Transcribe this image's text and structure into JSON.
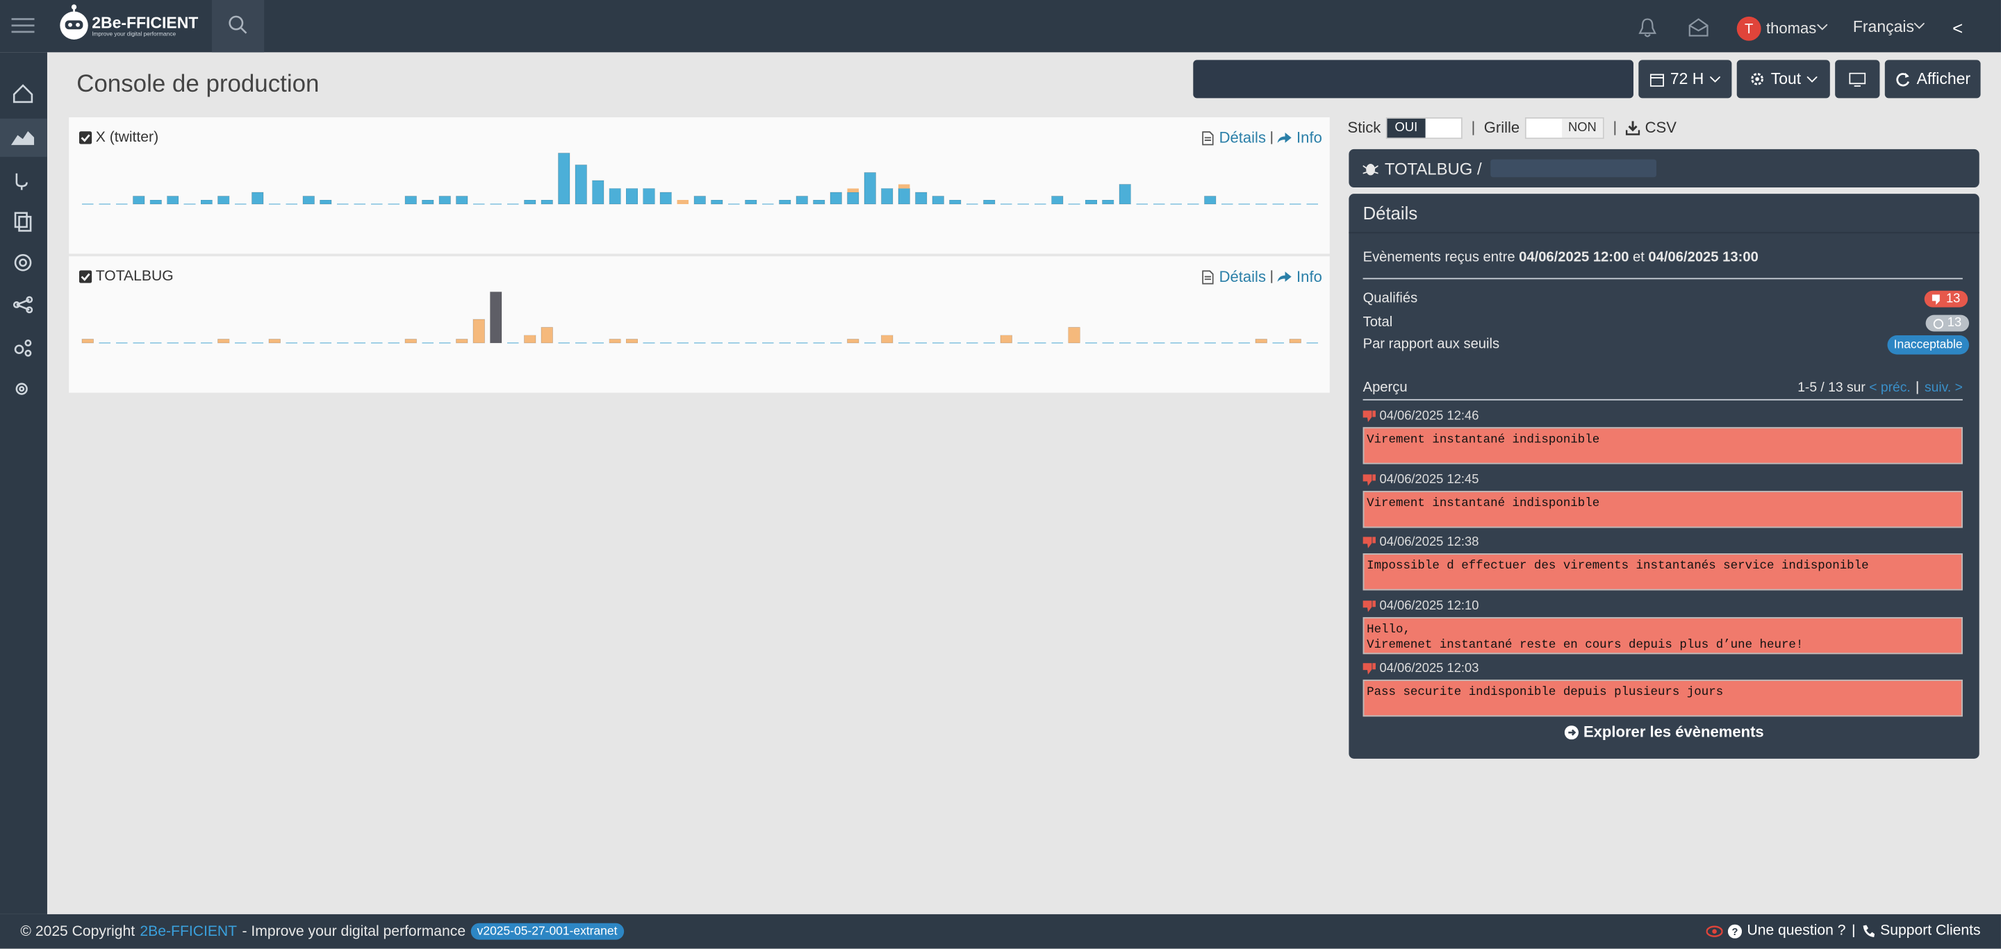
{
  "navbar": {
    "logo_title": "2Be-FFICIENT",
    "logo_subtitle": "Improve your digital performance",
    "user_initial": "T",
    "user_name": "thomas",
    "language": "Français",
    "collapse": "<"
  },
  "page_title": "Console de production",
  "toolbar": {
    "period": "72 H",
    "filter": "Tout",
    "show_button": "Afficher"
  },
  "options": {
    "stick_label": "Stick",
    "stick_value": "OUI",
    "grid_label": "Grille",
    "grid_value": "NON",
    "csv": "CSV"
  },
  "charts": [
    {
      "title": "X (twitter)",
      "details": "Détails",
      "info": "Info",
      "series": [
        {
          "color": "#4cafd8",
          "values": [
            0,
            0,
            0,
            2,
            1,
            2,
            0,
            1,
            2,
            0,
            3,
            0,
            0,
            2,
            1,
            0,
            0,
            0,
            0,
            2,
            1,
            2,
            2,
            0,
            0,
            0,
            1,
            1,
            13,
            10,
            6,
            4,
            4,
            4,
            3,
            0,
            2,
            1,
            0,
            1,
            0,
            1,
            2,
            1,
            3,
            3,
            8,
            4,
            4,
            3,
            2,
            1,
            0,
            1,
            0,
            0,
            0,
            2,
            0,
            1,
            1,
            5,
            0,
            0,
            0,
            0,
            2,
            0,
            0,
            0,
            0,
            0,
            0
          ]
        },
        {
          "color": "#f5b97c",
          "values": [
            0,
            0,
            0,
            0,
            0,
            0,
            0,
            0,
            0,
            0,
            0,
            0,
            0,
            0,
            0,
            0,
            0,
            0,
            0,
            0,
            0,
            0,
            0,
            0,
            0,
            0,
            0,
            0,
            0,
            0,
            0,
            0,
            0,
            0,
            0,
            1,
            0,
            0,
            0,
            0,
            0,
            0,
            0,
            0,
            0,
            1,
            0,
            0,
            1,
            0,
            0,
            0,
            0,
            0,
            0,
            0,
            0,
            0,
            0,
            0,
            0,
            0,
            0,
            0,
            0,
            0,
            0,
            0,
            0,
            0,
            0,
            0,
            0
          ]
        }
      ]
    },
    {
      "title": "TOTALBUG",
      "details": "Détails",
      "info": "Info",
      "series": [
        {
          "color": "#f5b97c",
          "values": [
            1,
            0,
            0,
            0,
            0,
            0,
            0,
            0,
            1,
            0,
            0,
            1,
            0,
            0,
            0,
            0,
            0,
            0,
            0,
            1,
            0,
            0,
            1,
            6,
            0,
            0,
            2,
            4,
            0,
            0,
            0,
            1,
            1,
            0,
            0,
            0,
            0,
            0,
            0,
            0,
            0,
            0,
            0,
            0,
            0,
            1,
            0,
            2,
            0,
            0,
            0,
            0,
            0,
            0,
            2,
            0,
            0,
            0,
            4,
            0,
            0,
            0,
            0,
            0,
            0,
            0,
            0,
            0,
            0,
            1,
            0,
            1,
            0
          ]
        },
        {
          "color": "#5e5e66",
          "values": [
            0,
            0,
            0,
            0,
            0,
            0,
            0,
            0,
            0,
            0,
            0,
            0,
            0,
            0,
            0,
            0,
            0,
            0,
            0,
            0,
            0,
            0,
            0,
            0,
            13,
            0,
            0,
            0,
            0,
            0,
            0,
            0,
            0,
            0,
            0,
            0,
            0,
            0,
            0,
            0,
            0,
            0,
            0,
            0,
            0,
            0,
            0,
            0,
            0,
            0,
            0,
            0,
            0,
            0,
            0,
            0,
            0,
            0,
            0,
            0,
            0,
            0,
            0,
            0,
            0,
            0,
            0,
            0,
            0,
            0,
            0,
            0,
            0
          ]
        }
      ]
    }
  ],
  "detail_panel": {
    "header": "TOTALBUG /",
    "title": "Détails",
    "period": {
      "prefix": "Evènements reçus entre",
      "start": "04/06/2025 12:00",
      "conjunction": "et",
      "end": "04/06/2025 13:00"
    },
    "qualified_label": "Qualifiés",
    "qualified_count": "13",
    "total_label": "Total",
    "total_count": "13",
    "threshold_label": "Par rapport aux seuils",
    "threshold_status": "Inacceptable",
    "overview_label": "Aperçu",
    "pagination": "1-5 / 13 sur",
    "prev": "< préc.",
    "next": "suiv. >",
    "messages": [
      {
        "time": "04/06/2025 12:46",
        "text": "Virement instantané indisponible"
      },
      {
        "time": "04/06/2025 12:45",
        "text": "Virement instantané indisponible"
      },
      {
        "time": "04/06/2025 12:38",
        "text": "Impossible d effectuer des virements instantanés service indisponible"
      },
      {
        "time": "04/06/2025 12:10",
        "text": "Hello,\nViremenet instantané reste en cours depuis plus d’une heure!"
      },
      {
        "time": "04/06/2025 12:03",
        "text": "Pass securite indisponible depuis plusieurs jours"
      }
    ],
    "explore_button": "Explorer les évènements"
  },
  "footer": {
    "copyright": "© 2025 Copyright",
    "brand": "2Be-FFICIENT",
    "tagline": "- Improve your digital performance",
    "version": "v2025-05-27-001-extranet",
    "question": "Une question ?",
    "support": "Support Clients"
  }
}
